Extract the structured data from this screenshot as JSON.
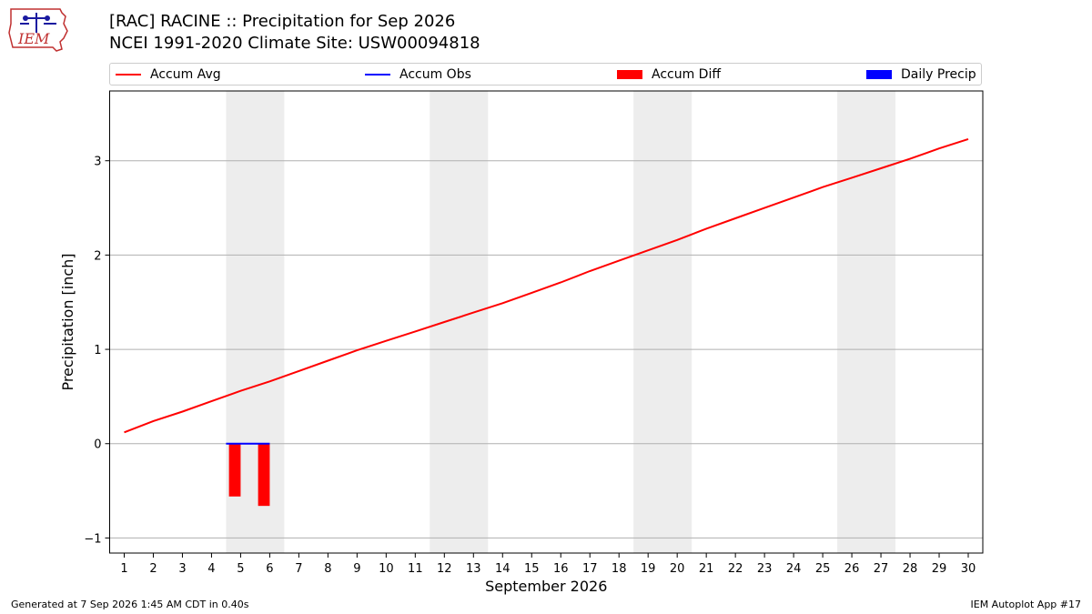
{
  "logo": {
    "text": "IEM"
  },
  "title_line1": "[RAC] RACINE :: Precipitation for Sep 2026",
  "title_line2": "NCEI 1991-2020 Climate Site: USW00094818",
  "legend": [
    {
      "label": "Accum Avg",
      "kind": "line",
      "color": "#ff0000"
    },
    {
      "label": "Accum Obs",
      "kind": "line",
      "color": "#0000ff"
    },
    {
      "label": "Accum Diff",
      "kind": "box",
      "color": "#ff0000"
    },
    {
      "label": "Daily Precip",
      "kind": "box",
      "color": "#0000ff"
    }
  ],
  "footer_left": "Generated at 7 Sep 2026 1:45 AM CDT in 0.40s",
  "footer_right": "IEM Autoplot App #17",
  "chart_data": {
    "type": "line",
    "xlabel": "September 2026",
    "ylabel": "Precipitation [inch]",
    "xlim": [
      0.5,
      30.5
    ],
    "ylim": [
      -1.16,
      3.74
    ],
    "x_ticks": [
      1,
      2,
      3,
      4,
      5,
      6,
      7,
      8,
      9,
      10,
      11,
      12,
      13,
      14,
      15,
      16,
      17,
      18,
      19,
      20,
      21,
      22,
      23,
      24,
      25,
      26,
      27,
      28,
      29,
      30
    ],
    "y_ticks": [
      -1,
      0,
      1,
      2,
      3
    ],
    "y_tick_labels": [
      "−1",
      "0",
      "1",
      "2",
      "3"
    ],
    "grid": "horizontal",
    "weekend_shading": [
      [
        4.5,
        6.5
      ],
      [
        11.5,
        13.5
      ],
      [
        18.5,
        20.5
      ],
      [
        25.5,
        27.5
      ]
    ],
    "series": [
      {
        "name": "Accum Avg",
        "kind": "line",
        "color": "#ff0000",
        "x": [
          1,
          2,
          3,
          4,
          5,
          6,
          7,
          8,
          9,
          10,
          11,
          12,
          13,
          14,
          15,
          16,
          17,
          18,
          19,
          20,
          21,
          22,
          23,
          24,
          25,
          26,
          27,
          28,
          29,
          30
        ],
        "values": [
          0.12,
          0.24,
          0.34,
          0.45,
          0.56,
          0.66,
          0.77,
          0.88,
          0.99,
          1.09,
          1.19,
          1.29,
          1.39,
          1.49,
          1.6,
          1.71,
          1.83,
          1.94,
          2.05,
          2.16,
          2.28,
          2.39,
          2.5,
          2.61,
          2.72,
          2.82,
          2.92,
          3.02,
          3.13,
          3.23
        ]
      },
      {
        "name": "Accum Obs",
        "kind": "line",
        "color": "#0000ff",
        "x": [
          4.5,
          6.0
        ],
        "values": [
          0.0,
          0.0
        ]
      },
      {
        "name": "Accum Diff",
        "kind": "bar",
        "color": "#ff0000",
        "x": [
          4.8,
          5.8
        ],
        "values": [
          -0.56,
          -0.66
        ]
      },
      {
        "name": "Daily Precip",
        "kind": "bar",
        "color": "#0000ff",
        "x": [
          5.2,
          6.2
        ],
        "values": [
          0.0,
          0.0
        ]
      }
    ]
  }
}
